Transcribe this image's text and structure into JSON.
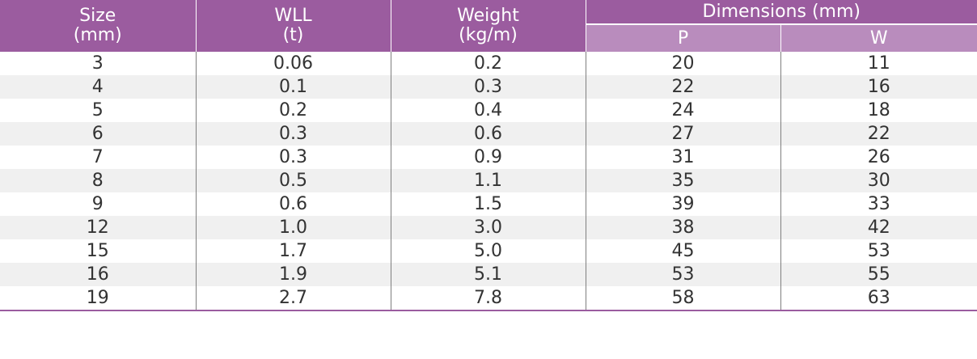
{
  "table": {
    "headers": {
      "size_line1": "Size",
      "size_line2": "(mm)",
      "wll_line1": "WLL",
      "wll_line2": "(t)",
      "weight_line1": "Weight",
      "weight_line2": "(kg/m)",
      "dimensions": "Dimensions (mm)",
      "dim_p": "P",
      "dim_w": "W"
    },
    "rows": [
      {
        "size": "3",
        "wll": "0.06",
        "weight": "0.2",
        "p": "20",
        "w": "11"
      },
      {
        "size": "4",
        "wll": "0.1",
        "weight": "0.3",
        "p": "22",
        "w": "16"
      },
      {
        "size": "5",
        "wll": "0.2",
        "weight": "0.4",
        "p": "24",
        "w": "18"
      },
      {
        "size": "6",
        "wll": "0.3",
        "weight": "0.6",
        "p": "27",
        "w": "22"
      },
      {
        "size": "7",
        "wll": "0.3",
        "weight": "0.9",
        "p": "31",
        "w": "26"
      },
      {
        "size": "8",
        "wll": "0.5",
        "weight": "1.1",
        "p": "35",
        "w": "30"
      },
      {
        "size": "9",
        "wll": "0.6",
        "weight": "1.5",
        "p": "39",
        "w": "33"
      },
      {
        "size": "12",
        "wll": "1.0",
        "weight": "3.0",
        "p": "38",
        "w": "42"
      },
      {
        "size": "15",
        "wll": "1.7",
        "weight": "5.0",
        "p": "45",
        "w": "53"
      },
      {
        "size": "16",
        "wll": "1.9",
        "weight": "5.1",
        "p": "53",
        "w": "55"
      },
      {
        "size": "19",
        "wll": "2.7",
        "weight": "7.8",
        "p": "58",
        "w": "63"
      }
    ]
  },
  "colors": {
    "header_primary": "#9b5c9f",
    "header_secondary": "#b98cbd",
    "row_stripe": "#f0f0f0"
  }
}
